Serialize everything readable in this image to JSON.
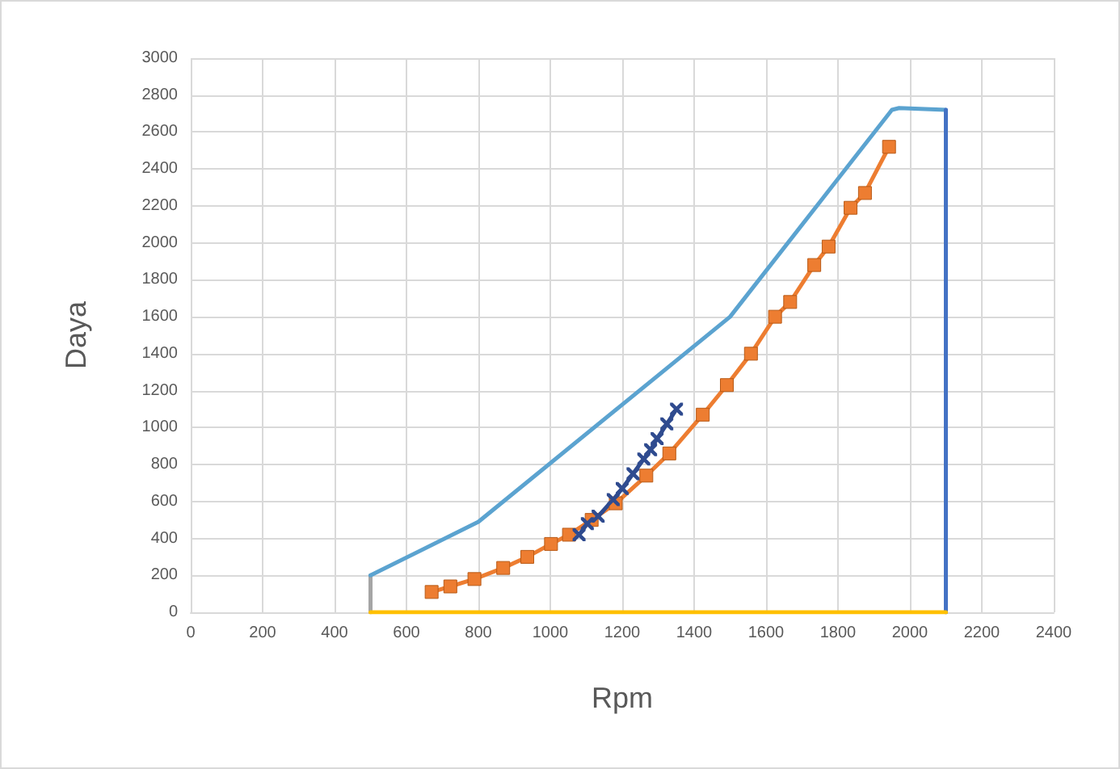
{
  "chart_data": {
    "type": "line",
    "xlabel": "Rpm",
    "ylabel": "Daya",
    "xlim": [
      0,
      2400
    ],
    "xticks": [
      0,
      200,
      400,
      600,
      800,
      1000,
      1200,
      1400,
      1600,
      1800,
      2000,
      2200,
      2400
    ],
    "ylim": [
      0,
      3000
    ],
    "yticks": [
      0,
      200,
      400,
      600,
      800,
      1000,
      1200,
      1400,
      1600,
      1800,
      2000,
      2200,
      2400,
      2600,
      2800,
      3000
    ],
    "grid": true,
    "line_style": "solid",
    "series": [
      {
        "color": "#a5a5a5",
        "marker": "none",
        "x": [
          500,
          500
        ],
        "values": [
          0,
          200
        ]
      },
      {
        "color": "#5ba3d0",
        "marker": "none",
        "x": [
          500,
          800,
          1500,
          1950,
          1970,
          2100
        ],
        "values": [
          200,
          490,
          1600,
          2720,
          2730,
          2720
        ]
      },
      {
        "color": "#4472c4",
        "marker": "none",
        "x": [
          2100,
          2100
        ],
        "values": [
          2720,
          0
        ]
      },
      {
        "color": "#ffc000",
        "marker": "none",
        "x": [
          500,
          2100
        ],
        "values": [
          0,
          0
        ]
      },
      {
        "color": "#ed7d31",
        "marker": "square",
        "x": [
          670,
          722,
          789,
          869,
          936,
          1002,
          1052,
          1115,
          1182,
          1267,
          1331,
          1424,
          1491,
          1558,
          1625,
          1667,
          1734,
          1774,
          1835,
          1875,
          1942
        ],
        "values": [
          110,
          140,
          180,
          240,
          300,
          370,
          420,
          500,
          590,
          740,
          860,
          1070,
          1230,
          1400,
          1600,
          1680,
          1880,
          1980,
          2190,
          2270,
          2520
        ]
      },
      {
        "color": "#2f4b8f",
        "marker": "cross",
        "x": [
          1080,
          1103,
          1133,
          1175,
          1200,
          1230,
          1260,
          1279,
          1297,
          1324,
          1351
        ],
        "values": [
          420,
          480,
          520,
          610,
          670,
          750,
          830,
          880,
          940,
          1020,
          1100
        ]
      }
    ]
  }
}
